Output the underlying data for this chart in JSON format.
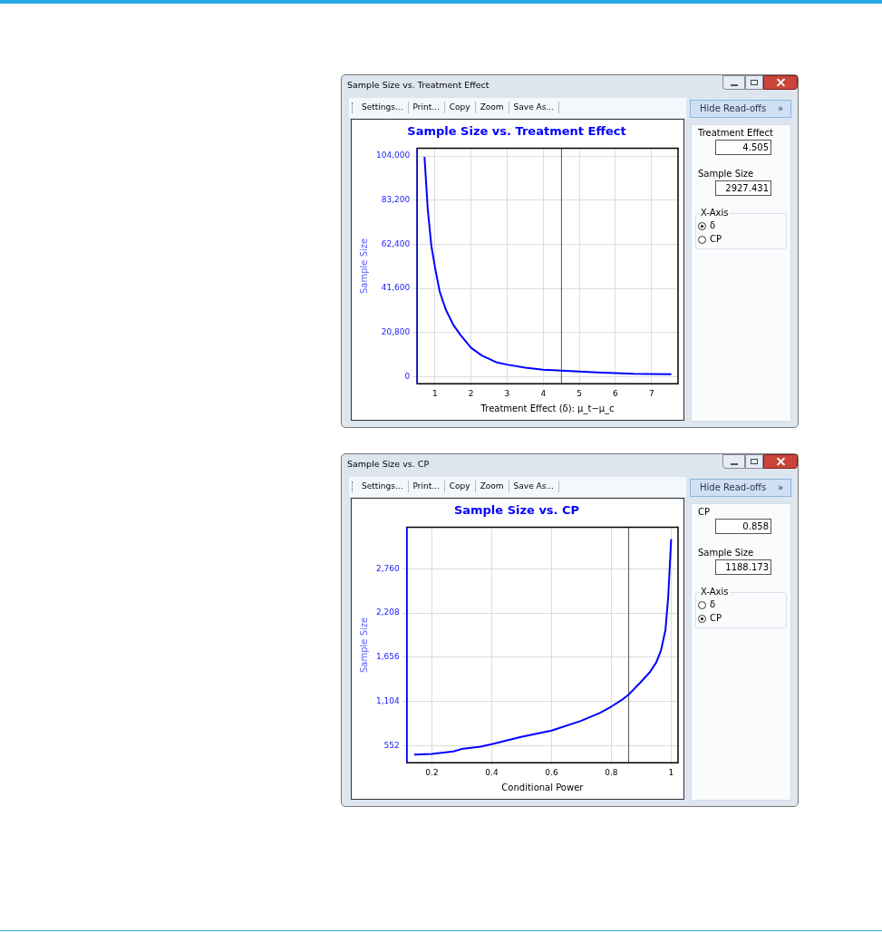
{
  "chart_data": [
    {
      "type": "line",
      "title": "Sample Size vs. Treatment Effect",
      "xlabel": "Treatment Effect (δ): μ_t−μ_c",
      "ylabel": "Sample Size",
      "color": "#0000ff",
      "x": [
        0.71,
        0.8,
        0.9,
        1.0,
        1.13,
        1.3,
        1.51,
        1.72,
        2.0,
        2.3,
        2.72,
        3.0,
        3.5,
        4.0,
        4.5,
        5.0,
        5.5,
        6.0,
        6.5,
        7.0,
        7.55
      ],
      "values": [
        103600,
        78900,
        61700,
        51600,
        40200,
        31600,
        24400,
        19400,
        13600,
        10000,
        6700,
        5700,
        4300,
        3300,
        2900,
        2400,
        2000,
        1700,
        1400,
        1300,
        1200
      ],
      "xlim": [
        0.507,
        7.735
      ],
      "xticks": [
        1,
        2,
        3,
        4,
        5,
        6,
        7
      ],
      "ylim": [
        -3300,
        107600
      ],
      "yticks": [
        0,
        {
          "value": 20800,
          "label": "20,800"
        },
        {
          "value": 41600,
          "label": "41,600"
        },
        {
          "value": 62400,
          "label": "62,400"
        },
        {
          "value": 83200,
          "label": "83,200"
        },
        {
          "value": 104000,
          "label": "104,000"
        }
      ],
      "ref_lines": [
        {
          "axis": "x",
          "value": 4.505,
          "color": "#555555"
        }
      ],
      "grid": true,
      "legend": false,
      "marker": "none",
      "line_style": "solid",
      "annotations": [
        "Sample Size vs. Treatment Effect",
        "Settings...",
        "Print...",
        "Copy",
        "Zoom",
        "Save As...",
        "Hide Read-offs",
        "»",
        "Treatment Effect",
        "4.505",
        "Sample Size",
        "2927.431",
        "X-Axis",
        "δ",
        "CP"
      ]
    },
    {
      "type": "line",
      "title": "Sample Size vs. CP",
      "xlabel": "Conditional Power",
      "ylabel": "Sample Size",
      "color": "#0000ff",
      "x": [
        0.141,
        0.2,
        0.272,
        0.299,
        0.362,
        0.4,
        0.498,
        0.6,
        0.698,
        0.761,
        0.8,
        0.834,
        0.858,
        0.897,
        0.929,
        0.95,
        0.966,
        0.981,
        0.99,
        1.0
      ],
      "values": [
        440,
        450,
        480,
        510,
        540,
        570,
        660,
        740,
        860,
        960,
        1040,
        1120,
        1190,
        1340,
        1470,
        1590,
        1740,
        2000,
        2400,
        3130
      ],
      "xlim": [
        0.116,
        1.023
      ],
      "xticks": [
        0.2,
        0.4,
        0.6,
        0.8,
        1
      ],
      "ylim": [
        339,
        3277
      ],
      "yticks": [
        552,
        {
          "value": 1104,
          "label": "1,104"
        },
        {
          "value": 1656,
          "label": "1,656"
        },
        {
          "value": 2208,
          "label": "2,208"
        },
        {
          "value": 2760,
          "label": "2,760"
        }
      ],
      "ref_lines": [
        {
          "axis": "x",
          "value": 0.858,
          "color": "#555555"
        }
      ],
      "grid": true,
      "legend": false,
      "marker": "none",
      "line_style": "solid",
      "annotations": [
        "Sample Size vs. CP",
        "Settings...",
        "Print...",
        "Copy",
        "Zoom",
        "Save As...",
        "Hide Read-offs",
        "»",
        "CP",
        "0.858",
        "Sample Size",
        "1188.173",
        "X-Axis",
        "δ",
        "CP"
      ]
    }
  ]
}
